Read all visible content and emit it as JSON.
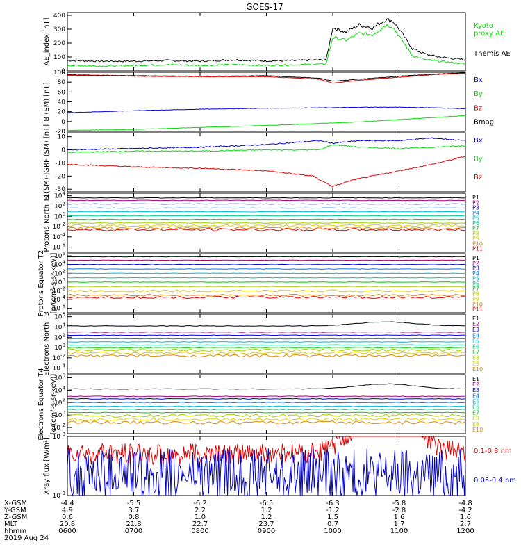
{
  "title": "GOES-17",
  "colors": {
    "black": "#000000",
    "green": "#00dd00",
    "blue": "#0000cc",
    "red": "#dd0000"
  },
  "chart_data": [
    {
      "type": "line",
      "ylabel": "AE_index [nT]",
      "yticks": [
        "400",
        "300",
        "200",
        "100",
        "0"
      ],
      "ylim": [
        0,
        420
      ],
      "x_hours": [
        6,
        12
      ],
      "legend": [
        {
          "name": "Kyoto proxy AE",
          "color": "#00dd00"
        },
        {
          "name": "Themis AE",
          "color": "#000000"
        }
      ],
      "series": [
        {
          "name": "Themis AE",
          "color": "#000000",
          "x": [
            6,
            6.5,
            7,
            7.5,
            8,
            8.5,
            9,
            9.5,
            9.9,
            10,
            10.2,
            10.4,
            10.6,
            10.8,
            10.9,
            11,
            11.2,
            11.4,
            11.6,
            11.8,
            12
          ],
          "y": [
            75,
            70,
            70,
            75,
            70,
            80,
            72,
            75,
            80,
            310,
            280,
            330,
            310,
            370,
            360,
            300,
            160,
            120,
            100,
            90,
            80
          ]
        },
        {
          "name": "Kyoto proxy AE",
          "color": "#00dd00",
          "x": [
            6,
            6.5,
            7,
            7.5,
            8,
            8.5,
            9,
            9.5,
            9.9,
            10,
            10.2,
            10.4,
            10.6,
            10.8,
            10.9,
            11,
            11.2,
            11.4,
            11.6,
            11.8,
            12
          ],
          "y": [
            40,
            35,
            40,
            45,
            40,
            45,
            40,
            45,
            50,
            240,
            220,
            270,
            260,
            330,
            320,
            250,
            110,
            80,
            70,
            60,
            50
          ]
        }
      ]
    },
    {
      "type": "line",
      "ylabel": "B (SM) [nT]",
      "yticks": [
        "100",
        "80",
        "60",
        "40",
        "20",
        "0",
        "-20"
      ],
      "ylim": [
        -20,
        100
      ],
      "legend": [
        {
          "name": "Bx",
          "color": "#0000cc"
        },
        {
          "name": "By",
          "color": "#00dd00"
        },
        {
          "name": "Bz",
          "color": "#dd0000"
        },
        {
          "name": "Bmag",
          "color": "#000000"
        }
      ],
      "series": [
        {
          "name": "Bmag",
          "color": "#000000",
          "x": [
            6,
            7,
            8,
            9,
            9.8,
            10,
            10.4,
            11,
            11.5,
            12
          ],
          "y": [
            95,
            93,
            92,
            93,
            88,
            82,
            86,
            92,
            96,
            99
          ]
        },
        {
          "name": "Bz",
          "color": "#dd0000",
          "x": [
            6,
            7,
            8,
            9,
            9.8,
            10,
            10.4,
            11,
            11.5,
            12
          ],
          "y": [
            94,
            92,
            91,
            91,
            86,
            78,
            84,
            90,
            95,
            98
          ]
        },
        {
          "name": "Bx",
          "color": "#0000cc",
          "x": [
            6,
            7,
            8,
            9,
            10,
            10.5,
            11,
            11.5,
            12
          ],
          "y": [
            18,
            22,
            25,
            27,
            28,
            29,
            29,
            28,
            26
          ]
        },
        {
          "name": "By",
          "color": "#00dd00",
          "x": [
            6,
            7,
            8,
            9,
            10,
            10.5,
            11,
            11.5,
            12
          ],
          "y": [
            -18,
            -16,
            -12,
            -8,
            -3,
            0,
            4,
            8,
            12
          ]
        }
      ]
    },
    {
      "type": "line",
      "ylabel": "B (SM)-IGRF (SM) [nT]",
      "yticks": [
        "10",
        "0",
        "-10",
        "-20",
        "-30"
      ],
      "ylim": [
        -32,
        13
      ],
      "legend": [
        {
          "name": "Bx",
          "color": "#0000cc"
        },
        {
          "name": "By",
          "color": "#00dd00"
        },
        {
          "name": "Bz",
          "color": "#dd0000"
        }
      ],
      "series": [
        {
          "name": "Bx",
          "color": "#0000cc",
          "x": [
            6,
            7,
            8,
            9,
            9.8,
            10,
            10.4,
            11,
            11.5,
            12
          ],
          "y": [
            0,
            1,
            2,
            4,
            7,
            5,
            7,
            7,
            9,
            7
          ]
        },
        {
          "name": "By",
          "color": "#00dd00",
          "x": [
            6,
            7,
            8,
            9,
            9.8,
            10,
            10.4,
            11,
            11.5,
            12
          ],
          "y": [
            -2,
            -1,
            -1,
            0,
            0,
            4,
            2,
            1,
            2,
            3
          ]
        },
        {
          "name": "Bz",
          "color": "#dd0000",
          "x": [
            6,
            7,
            8,
            9,
            9.7,
            10,
            10.3,
            11,
            11.5,
            12
          ],
          "y": [
            -11,
            -13,
            -14,
            -16,
            -20,
            -28,
            -23,
            -16,
            -11,
            -5
          ]
        }
      ]
    },
    {
      "type": "line",
      "ylabel": "Protons North T1",
      "yticks": [
        "10^4",
        "10^2",
        "10^0",
        "10^-2",
        "10^-4",
        "10^-6"
      ],
      "log": true,
      "ylim": [
        -7,
        4.5
      ],
      "legend": [
        "P1",
        "P2",
        "P3",
        "P4",
        "P5",
        "P6",
        "P7",
        "P8",
        "P9",
        "P10",
        "P11"
      ],
      "levels": [
        3.6,
        3.1,
        2.4,
        1.6,
        0.9,
        0.1,
        -0.6,
        -1.3,
        -1.8,
        -2.3,
        -2.6
      ]
    },
    {
      "type": "line",
      "ylabel": "Protons Equator T2",
      "unit_label": "[p/(cm²-s-sr-keV)]",
      "yticks": [
        "10^6",
        "10^4",
        "10^2",
        "10^0",
        "10^-2",
        "10^-4",
        "10^-6"
      ],
      "log": true,
      "ylim": [
        -7,
        6.5
      ],
      "legend": [
        "P1",
        "P2",
        "P3",
        "P4",
        "P5",
        "P6",
        "P7",
        "P8",
        "P9",
        "P10",
        "P11"
      ],
      "levels": [
        5.8,
        5.0,
        4.0,
        3.0,
        2.0,
        1.0,
        0.0,
        -1.0,
        -2.0,
        -3.0,
        -3.5
      ]
    },
    {
      "type": "line",
      "ylabel": "Electrons North T3",
      "yticks": [
        "10^6",
        "10^4",
        "10^2",
        "10^0",
        "10^-2",
        "10^-4"
      ],
      "log": true,
      "ylim": [
        -5,
        6.5
      ],
      "legend": [
        "E1",
        "E2",
        "E3",
        "E4",
        "E5",
        "E6",
        "E7",
        "E8",
        "E9",
        "E10"
      ],
      "levels": [
        4.2,
        3.0,
        2.4,
        1.7,
        1.1,
        0.5,
        0.0,
        -0.5,
        -1.1,
        -1.6
      ]
    },
    {
      "type": "line",
      "ylabel": "Electrons Equator T4",
      "unit_label": "[e/(cm²-s-sr-keV)]",
      "yticks": [
        "10^6",
        "10^4",
        "10^2",
        "10^0",
        "10^-2"
      ],
      "log": true,
      "ylim": [
        -3,
        6.5
      ],
      "legend": [
        "E1",
        "E2",
        "E3",
        "E4",
        "E5",
        "E6",
        "E7",
        "E8",
        "E9",
        "E10"
      ],
      "levels": [
        4.2,
        3.0,
        2.6,
        2.0,
        1.4,
        0.9,
        0.4,
        -0.1,
        -0.7,
        -1.2
      ]
    },
    {
      "type": "line",
      "ylabel": "Xray flux [W/m²]",
      "yticks": [
        "10^-8",
        "10^-9"
      ],
      "log": true,
      "ylim": [
        -9,
        -8
      ],
      "legend": [
        {
          "name": "0.1-0.8 nm",
          "color": "#dd0000"
        },
        {
          "name": "0.05-0.4 nm",
          "color": "#0000cc"
        }
      ],
      "levels": [
        -8.3,
        -8.65
      ]
    }
  ],
  "ephemeris": {
    "row_labels": [
      "X-GSM",
      "Y-GSM",
      "Z-GSM",
      "MLT",
      "hhmm"
    ],
    "date": "2019 Aug 24",
    "rows": [
      [
        "-4.4",
        "-5.5",
        "-6.2",
        "-6.5",
        "-6.3",
        "-5.8",
        "-4.8"
      ],
      [
        "4.9",
        "3.7",
        "2.2",
        "1.2",
        "-1.2",
        "-2.8",
        "-4.2"
      ],
      [
        "0.6",
        "0.8",
        "1.0",
        "1.2",
        "1.5",
        "1.6",
        "1.6"
      ],
      [
        "20.8",
        "21.8",
        "22.7",
        "23.7",
        "0.7",
        "1.7",
        "2.7"
      ],
      [
        "0600",
        "0700",
        "0800",
        "0900",
        "1000",
        "1100",
        "1200"
      ]
    ]
  },
  "level_colors": [
    "#000000",
    "#aa0077",
    "#0000cc",
    "#0077ff",
    "#00bbdd",
    "#00cc88",
    "#00cc00",
    "#aacc00",
    "#ddcc00",
    "#dd8800",
    "#dd0000"
  ]
}
